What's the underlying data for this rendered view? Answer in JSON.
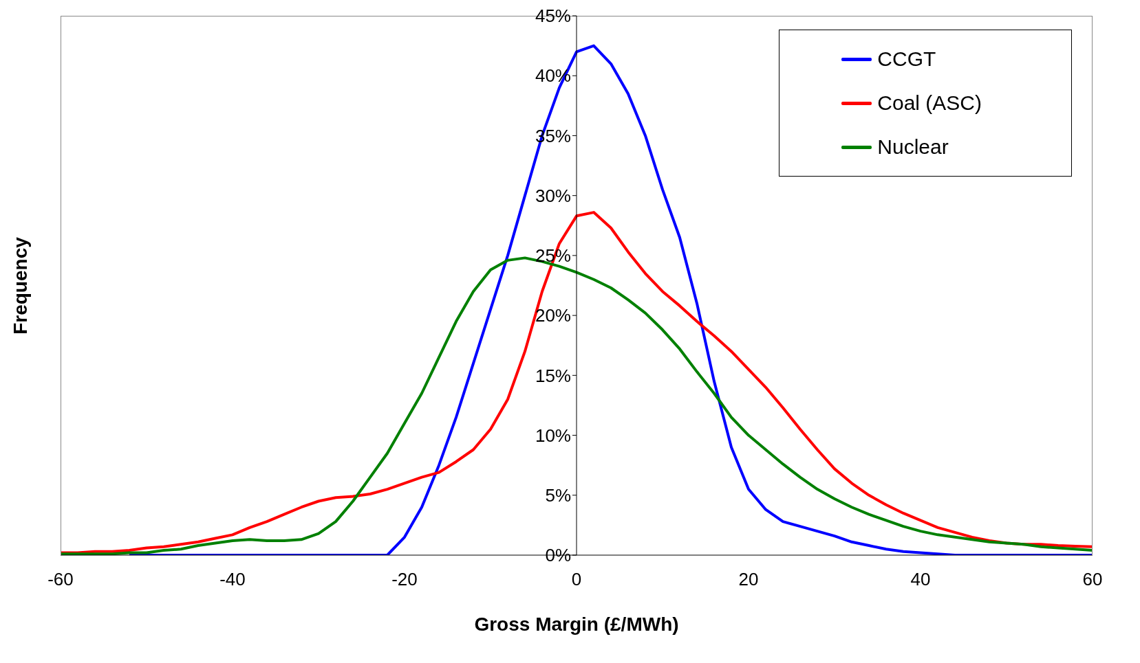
{
  "chart_data": {
    "type": "line",
    "xlabel": "Gross Margin (£/MWh)",
    "ylabel": "Frequency",
    "x": [
      -60,
      -58,
      -56,
      -54,
      -52,
      -50,
      -48,
      -46,
      -44,
      -42,
      -40,
      -38,
      -36,
      -34,
      -32,
      -30,
      -28,
      -26,
      -24,
      -22,
      -20,
      -18,
      -16,
      -14,
      -12,
      -10,
      -8,
      -6,
      -4,
      -2,
      0,
      2,
      4,
      6,
      8,
      10,
      12,
      14,
      16,
      18,
      20,
      22,
      24,
      26,
      28,
      30,
      32,
      34,
      36,
      38,
      40,
      42,
      44,
      46,
      48,
      50,
      52,
      54,
      56,
      58,
      60
    ],
    "series": [
      {
        "name": "CCGT",
        "color": "#0000ff",
        "values": [
          null,
          null,
          null,
          null,
          0,
          0,
          0,
          0,
          0,
          0,
          0,
          0,
          0,
          0,
          0,
          0,
          0,
          0,
          0,
          0,
          1.5,
          4,
          7.5,
          11.5,
          16,
          20.5,
          25,
          30,
          35,
          39,
          42,
          42.5,
          41,
          38.5,
          35,
          30.5,
          26.5,
          21,
          14.5,
          9,
          5.5,
          3.8,
          2.8,
          2.4,
          2,
          1.6,
          1.1,
          0.8,
          0.5,
          0.3,
          0.2,
          0.1,
          0,
          0,
          0,
          0,
          0,
          0,
          0,
          0,
          0
        ]
      },
      {
        "name": "Coal (ASC)",
        "color": "#ff0000",
        "values": [
          0.2,
          0.2,
          0.3,
          0.3,
          0.4,
          0.6,
          0.7,
          0.9,
          1.1,
          1.4,
          1.7,
          2.3,
          2.8,
          3.4,
          4.0,
          4.5,
          4.8,
          4.9,
          5.1,
          5.5,
          6.0,
          6.5,
          6.9,
          7.8,
          8.8,
          10.5,
          13,
          17,
          22,
          26,
          28.3,
          28.6,
          27.3,
          25.3,
          23.5,
          22,
          20.8,
          19.5,
          18.3,
          17,
          15.5,
          14,
          12.3,
          10.5,
          8.8,
          7.2,
          6,
          5,
          4.2,
          3.5,
          2.9,
          2.3,
          1.9,
          1.5,
          1.2,
          1.0,
          0.9,
          0.9,
          0.8,
          0.75,
          0.7
        ]
      },
      {
        "name": "Nuclear",
        "color": "#008000",
        "values": [
          0.1,
          0.1,
          0.1,
          0.1,
          0.2,
          0.2,
          0.4,
          0.5,
          0.8,
          1.0,
          1.2,
          1.3,
          1.2,
          1.2,
          1.3,
          1.8,
          2.8,
          4.5,
          6.5,
          8.5,
          11,
          13.5,
          16.5,
          19.5,
          22,
          23.8,
          24.6,
          24.8,
          24.5,
          24.1,
          23.6,
          23,
          22.3,
          21.3,
          20.2,
          18.8,
          17.2,
          15.3,
          13.5,
          11.5,
          10,
          8.8,
          7.6,
          6.5,
          5.5,
          4.7,
          4.0,
          3.4,
          2.9,
          2.4,
          2.0,
          1.7,
          1.5,
          1.3,
          1.1,
          1.0,
          0.9,
          0.7,
          0.6,
          0.5,
          0.4
        ]
      }
    ],
    "xlim": [
      -60,
      60
    ],
    "xticks": [
      -60,
      -40,
      -20,
      0,
      20,
      40,
      60
    ],
    "ylim": [
      0,
      45
    ],
    "yticks": [
      {
        "value": 0,
        "label": "0%"
      },
      {
        "value": 5,
        "label": "5%"
      },
      {
        "value": 10,
        "label": "10%"
      },
      {
        "value": 15,
        "label": "15%"
      },
      {
        "value": 20,
        "label": "20%"
      },
      {
        "value": 25,
        "label": "25%"
      },
      {
        "value": 30,
        "label": "30%"
      },
      {
        "value": 35,
        "label": "35%"
      },
      {
        "value": 40,
        "label": "40%"
      },
      {
        "value": 45,
        "label": "45%"
      }
    ],
    "grid": false,
    "legend": "top right",
    "marker": "none",
    "line_style": "solid"
  }
}
